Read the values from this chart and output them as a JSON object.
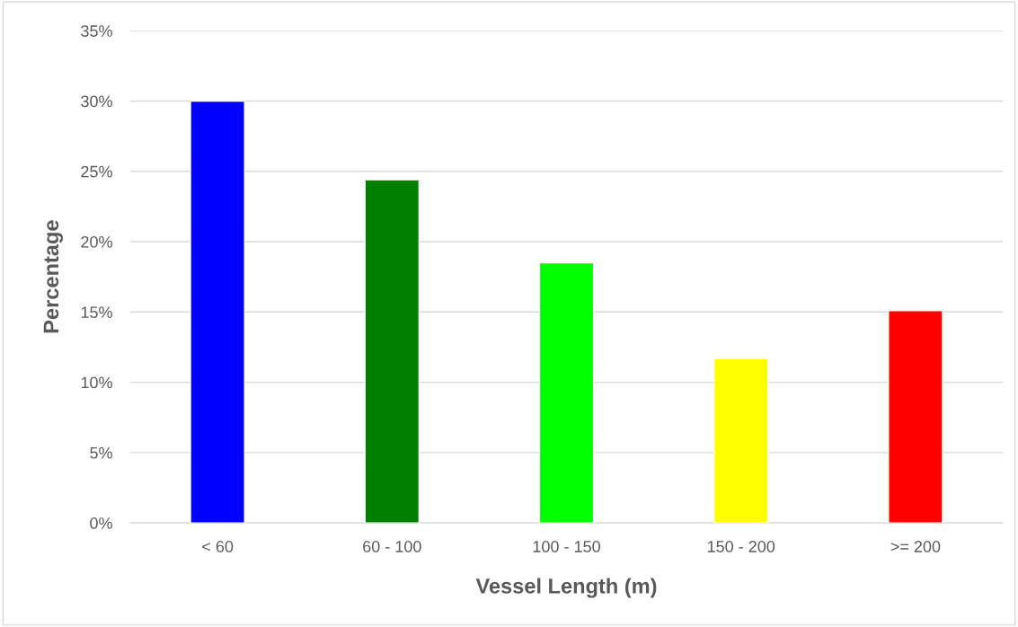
{
  "chart_data": {
    "type": "bar",
    "xlabel": "Vessel Length (m)",
    "ylabel": "Percentage",
    "categories": [
      "< 60",
      "60 - 100",
      "100 - 150",
      "150 - 200",
      ">= 200"
    ],
    "values": [
      30.0,
      24.4,
      18.5,
      11.7,
      15.1
    ],
    "colors": [
      "#0000ff",
      "#008000",
      "#00ff00",
      "#ffff00",
      "#ff0000"
    ],
    "ylim": [
      0,
      35
    ],
    "yticks": [
      {
        "value": 0,
        "label": "0%"
      },
      {
        "value": 5,
        "label": "5%"
      },
      {
        "value": 10,
        "label": "10%"
      },
      {
        "value": 15,
        "label": "15%"
      },
      {
        "value": 20,
        "label": "20%"
      },
      {
        "value": 25,
        "label": "25%"
      },
      {
        "value": 30,
        "label": "30%"
      },
      {
        "value": 35,
        "label": "35%"
      }
    ],
    "grid": "y",
    "legend": false
  }
}
